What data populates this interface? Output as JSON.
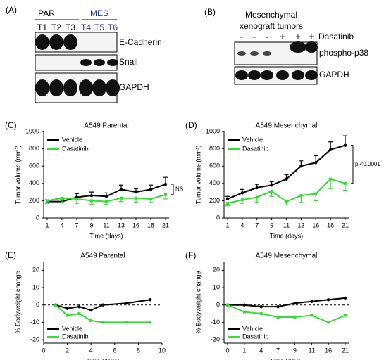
{
  "blots": {
    "a": {
      "panel": "(A)",
      "groups": [
        "PAR",
        "MES"
      ],
      "lanes": [
        "T1",
        "T2",
        "T3",
        "T4",
        "T5",
        "T6"
      ],
      "rows": [
        "E-Cadherin",
        "Snail",
        "GAPDH"
      ]
    },
    "b": {
      "panel": "(B)",
      "title": [
        "Mesenchymal",
        "xenograft tumors"
      ],
      "treatment": [
        "-",
        "-",
        "-",
        "+",
        "+",
        "+"
      ],
      "treatment_label": "Dasatinib",
      "rows": [
        "phospho-p38",
        "GAPDH"
      ]
    }
  },
  "chart_data": [
    {
      "type": "line",
      "panel": "(C)",
      "title": "A549 Parental",
      "xlabel": "Time (days)",
      "ylabel": "Tumor volume (mm³)",
      "categories": [
        "1",
        "4",
        "7",
        "9",
        "11",
        "13",
        "16",
        "18",
        "21"
      ],
      "ylim": [
        0,
        1000
      ],
      "yticks": [
        0,
        200,
        400,
        600,
        800,
        1000
      ],
      "legend": "upper left",
      "annotation": "NS",
      "series": [
        {
          "name": "Vehicle",
          "color": "#000000",
          "values": [
            190,
            190,
            240,
            260,
            250,
            330,
            300,
            330,
            390
          ],
          "errors": [
            20,
            30,
            40,
            40,
            40,
            50,
            40,
            50,
            80
          ]
        },
        {
          "name": "Dasatinib",
          "color": "#33dd33",
          "values": [
            200,
            230,
            220,
            200,
            190,
            230,
            230,
            220,
            270
          ],
          "errors": [
            30,
            50,
            50,
            40,
            30,
            40,
            50,
            40,
            50
          ]
        }
      ]
    },
    {
      "type": "line",
      "panel": "(D)",
      "title": "A549 Mesenchymal",
      "xlabel": "Time (days)",
      "ylabel": "Tumor volume (mm³)",
      "categories": [
        "1",
        "4",
        "7",
        "9",
        "11",
        "13",
        "16",
        "18",
        "21"
      ],
      "ylim": [
        0,
        1000
      ],
      "yticks": [
        0,
        200,
        400,
        600,
        800,
        1000
      ],
      "legend": "upper left",
      "annotation": "p <0.0001",
      "series": [
        {
          "name": "Vehicle",
          "color": "#000000",
          "values": [
            220,
            290,
            350,
            380,
            450,
            600,
            640,
            790,
            840
          ],
          "errors": [
            30,
            40,
            40,
            40,
            50,
            60,
            80,
            90,
            110
          ]
        },
        {
          "name": "Dasatinib",
          "color": "#33dd33",
          "values": [
            170,
            210,
            240,
            310,
            190,
            260,
            280,
            450,
            400
          ],
          "errors": [
            30,
            40,
            60,
            60,
            40,
            80,
            80,
            110,
            80
          ]
        }
      ]
    },
    {
      "type": "line",
      "panel": "(E)",
      "title": "A549 Parental",
      "xlabel": "Time (days)",
      "ylabel": "% Bodyweight change",
      "x": [
        1,
        2,
        3,
        4,
        5,
        7,
        9
      ],
      "xlim": [
        0,
        10
      ],
      "xticks": [
        0,
        2,
        4,
        6,
        8,
        10
      ],
      "ylim": [
        -22,
        25
      ],
      "yticks": [
        -20,
        -10,
        0,
        10,
        20
      ],
      "legend": "lower left",
      "zero_line": true,
      "series": [
        {
          "name": "Vehicle",
          "color": "#000000",
          "values": [
            0,
            -2,
            -1,
            -3,
            0,
            1,
            3
          ]
        },
        {
          "name": "Dasatinib",
          "color": "#33dd33",
          "values": [
            0,
            -6,
            -5,
            -9,
            -10,
            -10,
            -10
          ]
        }
      ]
    },
    {
      "type": "line",
      "panel": "(F)",
      "title": "A549 Mesenchymal",
      "xlabel": "Time (days)",
      "ylabel": "% Bodyweight change",
      "categories": [
        "0",
        "1",
        "4",
        "7",
        "9",
        "11",
        "16",
        "21"
      ],
      "ylim": [
        -22,
        25
      ],
      "yticks": [
        -20,
        -10,
        0,
        10,
        20
      ],
      "legend": "lower left",
      "zero_line": true,
      "series": [
        {
          "name": "Vehicle",
          "color": "#000000",
          "values": [
            0,
            0,
            -1,
            -1,
            1,
            2,
            3,
            4
          ]
        },
        {
          "name": "Dasatinib",
          "color": "#33dd33",
          "values": [
            0,
            -4,
            -5,
            -7,
            -7,
            -6,
            -10,
            -6
          ]
        }
      ]
    }
  ]
}
